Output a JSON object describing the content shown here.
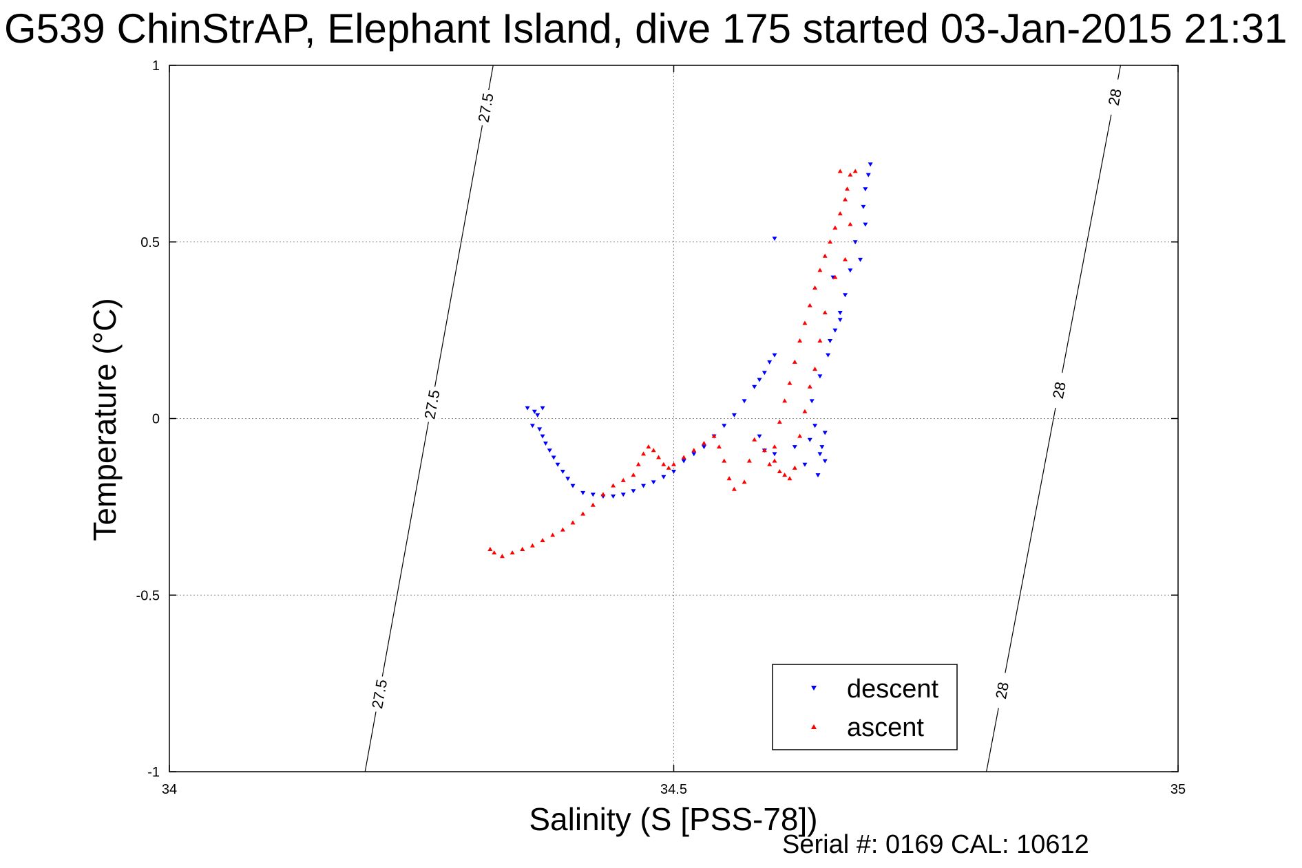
{
  "chart_data": {
    "type": "scatter",
    "title": "G539 ChinStrAP, Elephant Island, dive 175 started 03-Jan-2015 21:31",
    "xlabel": "Salinity (S [PSS-78])",
    "ylabel": "Temperature (°C)",
    "xlim": [
      34,
      35
    ],
    "ylim": [
      -1,
      1
    ],
    "xticks": [
      "34",
      "34.5",
      "35"
    ],
    "yticks": [
      "1",
      "0.5",
      "0",
      "-0.5",
      "-1"
    ],
    "grid": true,
    "legend": {
      "placement": "bottom-right",
      "entries": [
        "descent",
        "ascent"
      ]
    },
    "footer": "Serial #: 0169 CAL: 10612",
    "isopycnals": [
      {
        "label": "27.5",
        "from": [
          34.194,
          -1
        ],
        "to": [
          34.321,
          1
        ],
        "label_temps": [
          0.88,
          0.04,
          -0.78
        ]
      },
      {
        "label": "28",
        "from": [
          34.81,
          -1
        ],
        "to": [
          34.943,
          1
        ],
        "label_temps": [
          0.91,
          0.08,
          -0.77
        ]
      }
    ],
    "series": [
      {
        "name": "descent",
        "marker": "triangle-down",
        "color": "#0000ff",
        "points": [
          [
            34.355,
            0.03
          ],
          [
            34.362,
            0.02
          ],
          [
            34.37,
            0.03
          ],
          [
            34.365,
            0.01
          ],
          [
            34.36,
            -0.02
          ],
          [
            34.367,
            -0.03
          ],
          [
            34.37,
            -0.05
          ],
          [
            34.373,
            -0.07
          ],
          [
            34.377,
            -0.09
          ],
          [
            34.381,
            -0.11
          ],
          [
            34.385,
            -0.13
          ],
          [
            34.39,
            -0.15
          ],
          [
            34.395,
            -0.17
          ],
          [
            34.4,
            -0.19
          ],
          [
            34.41,
            -0.21
          ],
          [
            34.42,
            -0.215
          ],
          [
            34.43,
            -0.22
          ],
          [
            34.44,
            -0.22
          ],
          [
            34.45,
            -0.215
          ],
          [
            34.46,
            -0.205
          ],
          [
            34.47,
            -0.19
          ],
          [
            34.48,
            -0.18
          ],
          [
            34.49,
            -0.165
          ],
          [
            34.5,
            -0.15
          ],
          [
            34.51,
            -0.12
          ],
          [
            34.52,
            -0.1
          ],
          [
            34.53,
            -0.08
          ],
          [
            34.54,
            -0.05
          ],
          [
            34.55,
            -0.02
          ],
          [
            34.56,
            0.01
          ],
          [
            34.57,
            0.05
          ],
          [
            34.58,
            0.09
          ],
          [
            34.59,
            0.13
          ],
          [
            34.6,
            0.18
          ],
          [
            34.595,
            0.16
          ],
          [
            34.585,
            0.11
          ],
          [
            34.585,
            -0.05
          ],
          [
            34.59,
            -0.09
          ],
          [
            34.6,
            -0.1
          ],
          [
            34.62,
            -0.08
          ],
          [
            34.635,
            -0.06
          ],
          [
            34.645,
            -0.1
          ],
          [
            34.65,
            -0.12
          ],
          [
            34.643,
            -0.16
          ],
          [
            34.64,
            -0.02
          ],
          [
            34.637,
            0.05
          ],
          [
            34.645,
            0.12
          ],
          [
            34.655,
            0.22
          ],
          [
            34.665,
            0.3
          ],
          [
            34.67,
            0.35
          ],
          [
            34.675,
            0.42
          ],
          [
            34.68,
            0.5
          ],
          [
            34.685,
            0.45
          ],
          [
            34.69,
            0.55
          ],
          [
            34.688,
            0.6
          ],
          [
            34.69,
            0.65
          ],
          [
            34.693,
            0.69
          ],
          [
            34.695,
            0.72
          ],
          [
            34.66,
            0.25
          ],
          [
            34.653,
            0.18
          ],
          [
            34.658,
            0.4
          ],
          [
            34.665,
            0.28
          ],
          [
            34.6,
            0.51
          ],
          [
            34.65,
            -0.04
          ],
          [
            34.63,
            -0.13
          ],
          [
            34.647,
            -0.08
          ]
        ]
      },
      {
        "name": "ascent",
        "marker": "triangle-up",
        "color": "#ff0000",
        "points": [
          [
            34.318,
            -0.37
          ],
          [
            34.322,
            -0.38
          ],
          [
            34.33,
            -0.39
          ],
          [
            34.34,
            -0.38
          ],
          [
            34.35,
            -0.37
          ],
          [
            34.36,
            -0.36
          ],
          [
            34.37,
            -0.345
          ],
          [
            34.38,
            -0.33
          ],
          [
            34.39,
            -0.315
          ],
          [
            34.4,
            -0.295
          ],
          [
            34.41,
            -0.27
          ],
          [
            34.42,
            -0.245
          ],
          [
            34.43,
            -0.215
          ],
          [
            34.44,
            -0.19
          ],
          [
            34.45,
            -0.175
          ],
          [
            34.46,
            -0.16
          ],
          [
            34.465,
            -0.13
          ],
          [
            34.47,
            -0.1
          ],
          [
            34.475,
            -0.08
          ],
          [
            34.48,
            -0.09
          ],
          [
            34.485,
            -0.11
          ],
          [
            34.49,
            -0.13
          ],
          [
            34.495,
            -0.14
          ],
          [
            34.5,
            -0.13
          ],
          [
            34.51,
            -0.11
          ],
          [
            34.52,
            -0.09
          ],
          [
            34.53,
            -0.07
          ],
          [
            34.54,
            -0.05
          ],
          [
            34.545,
            -0.08
          ],
          [
            34.55,
            -0.12
          ],
          [
            34.555,
            -0.17
          ],
          [
            34.56,
            -0.2
          ],
          [
            34.57,
            -0.18
          ],
          [
            34.575,
            -0.12
          ],
          [
            34.58,
            -0.06
          ],
          [
            34.59,
            -0.09
          ],
          [
            34.595,
            -0.13
          ],
          [
            34.6,
            -0.08
          ],
          [
            34.605,
            -0.01
          ],
          [
            34.61,
            0.05
          ],
          [
            34.615,
            0.1
          ],
          [
            34.62,
            0.16
          ],
          [
            34.625,
            0.22
          ],
          [
            34.63,
            0.27
          ],
          [
            34.635,
            0.32
          ],
          [
            34.64,
            0.37
          ],
          [
            34.645,
            0.42
          ],
          [
            34.65,
            0.46
          ],
          [
            34.655,
            0.5
          ],
          [
            34.66,
            0.54
          ],
          [
            34.665,
            0.58
          ],
          [
            34.67,
            0.62
          ],
          [
            34.672,
            0.65
          ],
          [
            34.675,
            0.69
          ],
          [
            34.665,
            0.7
          ],
          [
            34.68,
            0.7
          ],
          [
            34.6,
            -0.12
          ],
          [
            34.605,
            -0.15
          ],
          [
            34.61,
            -0.16
          ],
          [
            34.615,
            -0.17
          ],
          [
            34.62,
            -0.14
          ],
          [
            34.625,
            -0.05
          ],
          [
            34.63,
            0.02
          ],
          [
            34.635,
            0.09
          ],
          [
            34.64,
            0.14
          ],
          [
            34.645,
            0.22
          ],
          [
            34.65,
            0.3
          ],
          [
            34.66,
            0.4
          ],
          [
            34.67,
            0.45
          ],
          [
            34.675,
            0.55
          ]
        ]
      }
    ]
  }
}
